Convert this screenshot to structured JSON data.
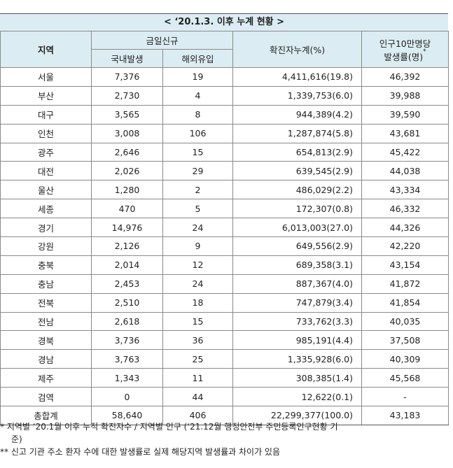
{
  "title": "< ‘20.1.3. 이후 누계 현황 >",
  "headers": {
    "region": "지역",
    "today_new": "금일신규",
    "domestic": "국내발생",
    "overseas": "해외유입",
    "cumulative": "확진자누계(%)",
    "rate_line1": "인구10만명당",
    "rate_line2": "발생률(명)",
    "rate_mark": "*"
  },
  "rows": [
    {
      "region": "서울",
      "domestic": "7,376",
      "overseas": "19",
      "cumulative": "4,411,616(19.8)",
      "rate": "46,392"
    },
    {
      "region": "부산",
      "domestic": "2,730",
      "overseas": "4",
      "cumulative": "1,339,753(6.0)",
      "rate": "39,988"
    },
    {
      "region": "대구",
      "domestic": "3,565",
      "overseas": "8",
      "cumulative": "944,389(4.2)",
      "rate": "39,590"
    },
    {
      "region": "인천",
      "domestic": "3,008",
      "overseas": "106",
      "cumulative": "1,287,874(5.8)",
      "rate": "43,681"
    },
    {
      "region": "광주",
      "domestic": "2,646",
      "overseas": "15",
      "cumulative": "654,813(2.9)",
      "rate": "45,422"
    },
    {
      "region": "대전",
      "domestic": "2,026",
      "overseas": "29",
      "cumulative": "639,545(2.9)",
      "rate": "44,038"
    },
    {
      "region": "울산",
      "domestic": "1,280",
      "overseas": "2",
      "cumulative": "486,029(2.2)",
      "rate": "43,334"
    },
    {
      "region": "세종",
      "domestic": "470",
      "overseas": "5",
      "cumulative": "172,307(0.8)",
      "rate": "46,332"
    },
    {
      "region": "경기",
      "domestic": "14,976",
      "overseas": "24",
      "cumulative": "6,013,003(27.0)",
      "rate": "44,326"
    },
    {
      "region": "강원",
      "domestic": "2,126",
      "overseas": "9",
      "cumulative": "649,556(2.9)",
      "rate": "42,220"
    },
    {
      "region": "충북",
      "domestic": "2,014",
      "overseas": "12",
      "cumulative": "689,358(3.1)",
      "rate": "43,154"
    },
    {
      "region": "충남",
      "domestic": "2,453",
      "overseas": "24",
      "cumulative": "887,367(4.0)",
      "rate": "41,872"
    },
    {
      "region": "전북",
      "domestic": "2,510",
      "overseas": "18",
      "cumulative": "747,879(3.4)",
      "rate": "41,854"
    },
    {
      "region": "전남",
      "domestic": "2,618",
      "overseas": "15",
      "cumulative": "733,762(3.3)",
      "rate": "40,035"
    },
    {
      "region": "경북",
      "domestic": "3,736",
      "overseas": "36",
      "cumulative": "985,191(4.4)",
      "rate": "37,508"
    },
    {
      "region": "경남",
      "domestic": "3,763",
      "overseas": "25",
      "cumulative": "1,335,928(6.0)",
      "rate": "40,309"
    },
    {
      "region": "제주",
      "domestic": "1,343",
      "overseas": "11",
      "cumulative": "308,385(1.4)",
      "rate": "45,568"
    },
    {
      "region": "검역",
      "domestic": "0",
      "overseas": "44",
      "cumulative": "12,622(0.1)",
      "rate": "-"
    }
  ],
  "total": {
    "region": "총합계",
    "domestic": "58,640",
    "overseas": "406",
    "cumulative": "22,299,377(100.0)",
    "rate": "43,183"
  },
  "notes": {
    "note1_line1": "* 지역별 ‘20.1월 이후 누적 확진자수 / 지역별 인구 (‘21.12월 행정안전부 주민등록인구현황 기",
    "note1_line2": "준)",
    "note2": "** 신고 기관 주소 환자 수에 대한 발생률로 실제 해당지역 발생률과 차이가 있음"
  }
}
